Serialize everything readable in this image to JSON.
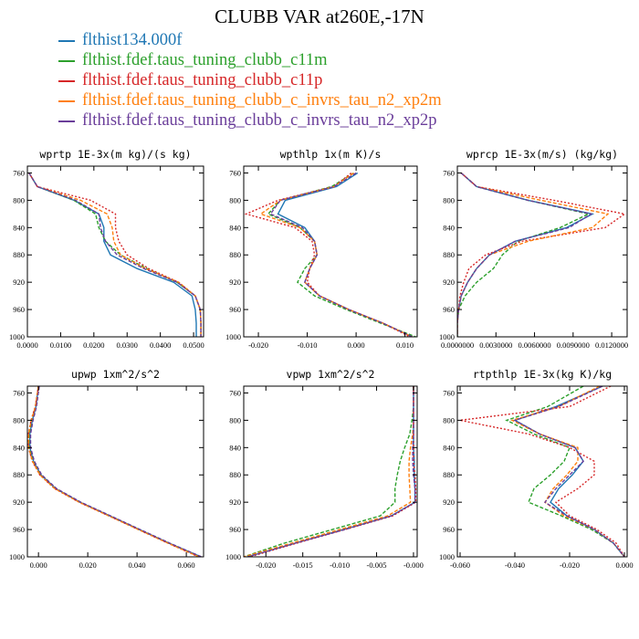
{
  "title": "CLUBB VAR at260E,-17N",
  "legend": [
    {
      "label": "flthist134.000f",
      "color": "#1f77b4"
    },
    {
      "label": "flthist.fdef.taus_tuning_clubb_c11m",
      "color": "#2ca02c"
    },
    {
      "label": "flthist.fdef.taus_tuning_clubb_c11p",
      "color": "#d62728"
    },
    {
      "label": "flthist.fdef.taus_tuning_clubb_c_invrs_tau_n2_xp2m",
      "color": "#ff7f0e"
    },
    {
      "label": "flthist.fdef.taus_tuning_clubb_c_invrs_tau_n2_xp2p",
      "color": "#6a3d9a"
    }
  ],
  "styles": [
    "solid",
    "dashed",
    "dotted",
    "dashed",
    "dashed"
  ],
  "chart_data": [
    {
      "type": "line",
      "title": "wprtp  1E-3x(m kg)/(s kg)",
      "xlim": [
        0,
        0.053
      ],
      "ylim": [
        1000,
        750
      ],
      "xticks": [
        0,
        0.01,
        0.02,
        0.03,
        0.04,
        0.05
      ],
      "xtick_labels": [
        "0.0000",
        "0.0100",
        "0.0200",
        "0.0300",
        "0.0400",
        "0.0500"
      ],
      "yticks": [
        760,
        800,
        840,
        880,
        920,
        960,
        1000
      ],
      "y": [
        760,
        780,
        800,
        820,
        840,
        860,
        880,
        900,
        920,
        940,
        960,
        980,
        1000
      ],
      "series": [
        {
          "values": [
            0.0005,
            0.003,
            0.014,
            0.0215,
            0.023,
            0.023,
            0.025,
            0.033,
            0.044,
            0.0495,
            0.0505,
            0.0508,
            0.0508
          ]
        },
        {
          "values": [
            0.0005,
            0.003,
            0.014,
            0.0205,
            0.0215,
            0.0235,
            0.028,
            0.036,
            0.045,
            0.0505,
            0.052,
            0.0522,
            0.0522
          ]
        },
        {
          "values": [
            0.0005,
            0.003,
            0.019,
            0.0265,
            0.0265,
            0.0275,
            0.03,
            0.0365,
            0.0455,
            0.0505,
            0.052,
            0.0522,
            0.0522
          ]
        },
        {
          "values": [
            0.0005,
            0.003,
            0.016,
            0.024,
            0.0255,
            0.026,
            0.028,
            0.0355,
            0.0455,
            0.0505,
            0.052,
            0.0522,
            0.0522
          ]
        },
        {
          "values": [
            0.0005,
            0.003,
            0.0145,
            0.0215,
            0.022,
            0.0235,
            0.027,
            0.035,
            0.045,
            0.0505,
            0.052,
            0.0522,
            0.0522
          ]
        }
      ]
    },
    {
      "type": "line",
      "title": "wpthlp  1x(m K)/s",
      "xlim": [
        -0.023,
        0.0125
      ],
      "ylim": [
        1000,
        750
      ],
      "xticks": [
        -0.02,
        -0.01,
        0,
        0.01
      ],
      "xtick_labels": [
        "-0.020",
        "-0.010",
        "0.000",
        "0.010"
      ],
      "yticks": [
        760,
        800,
        840,
        880,
        920,
        960,
        1000
      ],
      "y": [
        760,
        780,
        800,
        820,
        840,
        860,
        880,
        900,
        920,
        940,
        960,
        980,
        1000
      ],
      "series": [
        {
          "values": [
            0.0003,
            -0.004,
            -0.0145,
            -0.016,
            -0.0105,
            -0.0085,
            -0.008,
            -0.0095,
            -0.0105,
            -0.0075,
            -0.0015,
            0.0055,
            0.0115
          ]
        },
        {
          "values": [
            -0.0005,
            -0.005,
            -0.0155,
            -0.018,
            -0.0115,
            -0.0085,
            -0.008,
            -0.0105,
            -0.012,
            -0.0085,
            -0.002,
            0.005,
            0.0122
          ]
        },
        {
          "values": [
            -0.001,
            -0.0045,
            -0.016,
            -0.0225,
            -0.0125,
            -0.009,
            -0.0085,
            -0.0095,
            -0.01,
            -0.0075,
            -0.0015,
            0.0055,
            0.011
          ]
        },
        {
          "values": [
            -0.0005,
            -0.0045,
            -0.0155,
            -0.0195,
            -0.0115,
            -0.0085,
            -0.008,
            -0.0095,
            -0.0105,
            -0.0075,
            -0.0015,
            0.0055,
            0.0115
          ]
        },
        {
          "values": [
            0,
            -0.0045,
            -0.0155,
            -0.0175,
            -0.011,
            -0.0085,
            -0.008,
            -0.0095,
            -0.0105,
            -0.0075,
            -0.0015,
            0.0055,
            0.0115
          ]
        }
      ]
    },
    {
      "type": "line",
      "title": "wprcp  1E-3x(m/s) (kg/kg)",
      "xlim": [
        0,
        0.0132
      ],
      "ylim": [
        1000,
        750
      ],
      "xticks": [
        0,
        0.003,
        0.006,
        0.009,
        0.012
      ],
      "xtick_labels": [
        "0.0000000",
        "0.0030000",
        "0.0060000",
        "0.0090000",
        "0.0120000"
      ],
      "yticks": [
        760,
        800,
        840,
        880,
        920,
        960,
        1000
      ],
      "y": [
        760,
        780,
        800,
        820,
        840,
        860,
        880,
        900,
        920,
        940,
        960,
        980,
        1000
      ],
      "series": [
        {
          "values": [
            0.0003,
            0.0015,
            0.0055,
            0.0105,
            0.0085,
            0.0045,
            0.0025,
            0.0015,
            0.0008,
            0.0003,
            0.0001,
            0,
            0
          ]
        },
        {
          "values": [
            0.0003,
            0.0015,
            0.0055,
            0.0102,
            0.008,
            0.0047,
            0.0035,
            0.0028,
            0.0015,
            0.0006,
            0.0001,
            0,
            0
          ]
        },
        {
          "values": [
            0.0003,
            0.0015,
            0.0075,
            0.013,
            0.0115,
            0.005,
            0.0022,
            0.0009,
            0.0005,
            0.0002,
            0.0001,
            0,
            0
          ]
        },
        {
          "values": [
            0.0003,
            0.0015,
            0.0065,
            0.0117,
            0.0105,
            0.0055,
            0.0025,
            0.0015,
            0.0008,
            0.0003,
            0.0001,
            0,
            0
          ]
        },
        {
          "values": [
            0.0003,
            0.0015,
            0.0055,
            0.0104,
            0.0087,
            0.0045,
            0.0025,
            0.0015,
            0.0008,
            0.0003,
            0.0001,
            0,
            0
          ]
        }
      ]
    },
    {
      "type": "line",
      "title": "upwp  1xm^2/s^2",
      "xlim": [
        -0.0045,
        0.067
      ],
      "ylim": [
        1000,
        750
      ],
      "xticks": [
        0,
        0.02,
        0.04,
        0.06
      ],
      "xtick_labels": [
        "0.000",
        "0.020",
        "0.040",
        "0.060"
      ],
      "yticks": [
        760,
        800,
        840,
        880,
        920,
        960,
        1000
      ],
      "y": [
        750,
        780,
        800,
        820,
        840,
        860,
        880,
        900,
        920,
        940,
        960,
        980,
        1000
      ],
      "series": [
        {
          "values": [
            0,
            -0.001,
            -0.0025,
            -0.0035,
            -0.0035,
            -0.002,
            0.001,
            0.007,
            0.017,
            0.029,
            0.041,
            0.053,
            0.066
          ]
        },
        {
          "values": [
            0,
            -0.0012,
            -0.0028,
            -0.0038,
            -0.0038,
            -0.0022,
            0.0008,
            0.0068,
            0.0168,
            0.0288,
            0.0408,
            0.0528,
            0.0655
          ]
        },
        {
          "values": [
            0,
            -0.0013,
            -0.003,
            -0.0041,
            -0.0041,
            -0.0025,
            0.0005,
            0.0065,
            0.0165,
            0.0285,
            0.0405,
            0.0525,
            0.065
          ]
        },
        {
          "values": [
            0,
            -0.0012,
            -0.0029,
            -0.004,
            -0.004,
            -0.0024,
            0.0006,
            0.0066,
            0.0166,
            0.0286,
            0.0406,
            0.0526,
            0.0652
          ]
        },
        {
          "values": [
            0.0003,
            -0.0008,
            -0.0022,
            -0.0032,
            -0.0032,
            -0.0017,
            0.0013,
            0.0073,
            0.0173,
            0.0293,
            0.0413,
            0.0533,
            0.0662
          ]
        }
      ]
    },
    {
      "type": "line",
      "title": "vpwp  1xm^2/s^2",
      "xlim": [
        -0.023,
        0.0005
      ],
      "ylim": [
        1000,
        750
      ],
      "xticks": [
        -0.02,
        -0.015,
        -0.01,
        -0.005,
        0
      ],
      "xtick_labels": [
        "-0.020",
        "-0.015",
        "-0.010",
        "-0.005",
        "-0.000"
      ],
      "yticks": [
        760,
        800,
        840,
        880,
        920,
        960,
        1000
      ],
      "y": [
        750,
        780,
        800,
        820,
        840,
        860,
        880,
        900,
        920,
        940,
        960,
        980,
        1000
      ],
      "series": [
        {
          "values": [
            0,
            0,
            0,
            0,
            0,
            0.0001,
            0.0001,
            0.0002,
            0.0002,
            -0.003,
            -0.0095,
            -0.016,
            -0.0225
          ]
        },
        {
          "values": [
            0,
            0,
            -0.0002,
            -0.0005,
            -0.0012,
            -0.0018,
            -0.0022,
            -0.0025,
            -0.0025,
            -0.0045,
            -0.011,
            -0.0175,
            -0.023
          ]
        },
        {
          "values": [
            0,
            0,
            0,
            0,
            0,
            0,
            0.0002,
            0.0003,
            0.0003,
            -0.0028,
            -0.0093,
            -0.0158,
            -0.0222
          ]
        },
        {
          "values": [
            0,
            0,
            0,
            -0.0001,
            -0.0004,
            -0.0006,
            -0.0006,
            -0.0005,
            -0.0004,
            -0.0035,
            -0.01,
            -0.0165,
            -0.023
          ]
        },
        {
          "values": [
            0,
            0,
            0,
            0,
            -0.0001,
            -0.0001,
            0,
            0.0002,
            0.0002,
            -0.003,
            -0.0093,
            -0.016,
            -0.0225
          ]
        }
      ]
    },
    {
      "type": "line",
      "title": "rtpthlp  1E-3x(kg K)/kg",
      "xlim": [
        -0.061,
        0.001
      ],
      "ylim": [
        1000,
        750
      ],
      "xticks": [
        -0.06,
        -0.04,
        -0.02,
        0
      ],
      "xtick_labels": [
        "-0.060",
        "-0.040",
        "-0.020",
        "0.000"
      ],
      "yticks": [
        760,
        800,
        840,
        880,
        920,
        960,
        1000
      ],
      "y": [
        750,
        780,
        800,
        820,
        840,
        860,
        880,
        900,
        920,
        940,
        960,
        980,
        1000
      ],
      "series": [
        {
          "values": [
            -0.008,
            -0.025,
            -0.04,
            -0.031,
            -0.018,
            -0.015,
            -0.019,
            -0.024,
            -0.027,
            -0.021,
            -0.011,
            -0.004,
            0
          ]
        },
        {
          "values": [
            -0.015,
            -0.028,
            -0.043,
            -0.033,
            -0.02,
            -0.022,
            -0.027,
            -0.033,
            -0.035,
            -0.023,
            -0.012,
            -0.004,
            0
          ]
        },
        {
          "values": [
            -0.005,
            -0.02,
            -0.06,
            -0.035,
            -0.02,
            -0.011,
            -0.011,
            -0.017,
            -0.025,
            -0.02,
            -0.01,
            -0.003,
            0
          ]
        },
        {
          "values": [
            -0.009,
            -0.024,
            -0.041,
            -0.031,
            -0.017,
            -0.017,
            -0.021,
            -0.026,
            -0.029,
            -0.022,
            -0.011,
            -0.004,
            0
          ]
        },
        {
          "values": [
            -0.008,
            -0.024,
            -0.04,
            -0.031,
            -0.018,
            -0.015,
            -0.02,
            -0.025,
            -0.029,
            -0.021,
            -0.011,
            -0.004,
            0
          ]
        }
      ]
    }
  ]
}
